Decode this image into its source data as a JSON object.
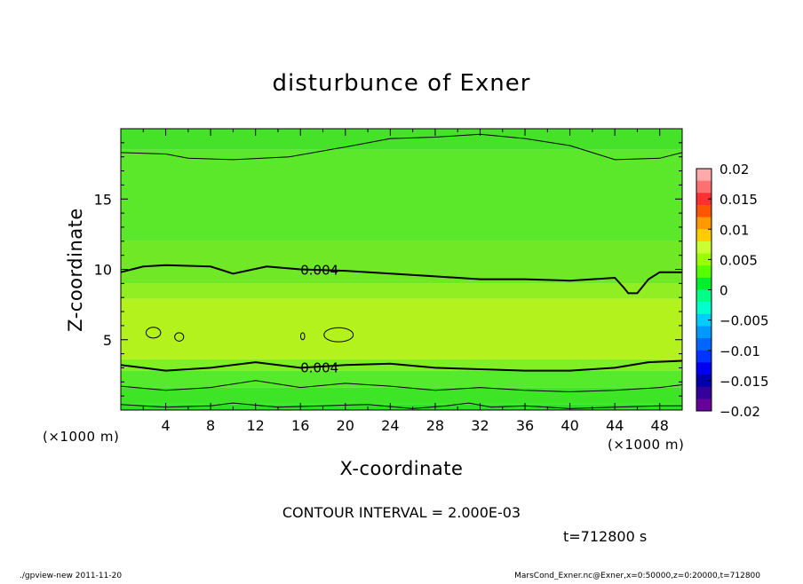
{
  "chart_data": {
    "type": "heatmap",
    "title": "disturbunce of Exner",
    "xlabel": "X-coordinate",
    "ylabel": "Z-coordinate",
    "x_unit_note": "(×1000 m)",
    "z_unit_note": "(×1000 m)",
    "xlim": [
      0,
      50
    ],
    "ylim": [
      0,
      20
    ],
    "x_ticks": [
      "4",
      "8",
      "12",
      "16",
      "20",
      "24",
      "28",
      "32",
      "36",
      "40",
      "44",
      "48"
    ],
    "y_ticks": [
      "5",
      "10",
      "15"
    ],
    "colorbar": {
      "ticks": [
        "0.02",
        "0.015",
        "0.01",
        "0.005",
        "0",
        "−0.005",
        "−0.01",
        "−0.015",
        "−0.02"
      ],
      "range": [
        -0.02,
        0.02
      ],
      "colors": [
        "#ffaaaa",
        "#ff7070",
        "#ff3030",
        "#ff5500",
        "#ff9900",
        "#ffcc00",
        "#ccff33",
        "#99ff00",
        "#55ff00",
        "#00ee30",
        "#00ff88",
        "#00ffcc",
        "#00ccff",
        "#0099ff",
        "#0066ff",
        "#0033ff",
        "#0000ee",
        "#0000aa",
        "#330099",
        "#660099"
      ]
    },
    "bands": [
      {
        "z_bottom": 0.0,
        "z_top": 0.4,
        "color": "#2ce023"
      },
      {
        "z_bottom": 0.4,
        "z_top": 1.6,
        "color": "#3de526"
      },
      {
        "z_bottom": 1.6,
        "z_top": 2.8,
        "color": "#56ea2c"
      },
      {
        "z_bottom": 2.8,
        "z_top": 3.6,
        "color": "#80f023"
      },
      {
        "z_bottom": 3.6,
        "z_top": 7.9,
        "color": "#b4f21e"
      },
      {
        "z_bottom": 7.9,
        "z_top": 9.0,
        "color": "#90ee22"
      },
      {
        "z_bottom": 9.0,
        "z_top": 12.0,
        "color": "#70e826"
      },
      {
        "z_bottom": 12.0,
        "z_top": 18.5,
        "color": "#5ce82a"
      },
      {
        "z_bottom": 18.5,
        "z_top": 20.0,
        "color": "#46e22a"
      }
    ],
    "contours": [
      {
        "level": 0.004,
        "label": "0.004",
        "x": [
          0,
          2,
          4,
          8,
          10,
          13,
          16,
          20,
          24,
          28,
          32,
          36,
          40,
          44,
          44.8,
          45.2,
          46,
          47,
          48,
          50
        ],
        "z": [
          9.8,
          10.2,
          10.3,
          10.2,
          9.7,
          10.2,
          10.0,
          9.9,
          9.7,
          9.5,
          9.3,
          9.3,
          9.2,
          9.4,
          8.7,
          8.3,
          8.3,
          9.3,
          9.8,
          9.8
        ]
      },
      {
        "level": 0.004,
        "label": "0.004",
        "x": [
          0,
          2,
          4,
          8,
          12,
          16,
          20,
          24,
          28,
          32,
          36,
          40,
          44,
          47,
          50
        ],
        "z": [
          3.2,
          3.0,
          2.8,
          3.0,
          3.4,
          3.0,
          3.2,
          3.3,
          3.0,
          2.9,
          2.8,
          2.8,
          3.0,
          3.4,
          3.5
        ]
      },
      {
        "level": 0.002,
        "label": "",
        "x": [
          0,
          4,
          6,
          10,
          15,
          20,
          24,
          28,
          32,
          36,
          40,
          44,
          48,
          50
        ],
        "z": [
          18.3,
          18.2,
          17.9,
          17.8,
          18.0,
          18.7,
          19.3,
          19.4,
          19.6,
          19.3,
          18.8,
          17.8,
          17.9,
          18.3
        ]
      },
      {
        "level": 0.002,
        "label": "",
        "x": [
          0,
          4,
          8,
          12,
          16,
          20,
          24,
          28,
          32,
          36,
          40,
          44,
          48,
          50
        ],
        "z": [
          1.7,
          1.4,
          1.6,
          2.1,
          1.6,
          1.9,
          1.7,
          1.4,
          1.6,
          1.4,
          1.3,
          1.4,
          1.6,
          1.8
        ]
      },
      {
        "level": 0.0,
        "label": "",
        "x": [
          0,
          4,
          8,
          10,
          14,
          18,
          22,
          26,
          29,
          31,
          33,
          36,
          40,
          44,
          48,
          50
        ],
        "z": [
          0.4,
          0.2,
          0.3,
          0.5,
          0.2,
          0.3,
          0.4,
          0.1,
          0.3,
          0.5,
          0.2,
          0.3,
          0.1,
          0.2,
          0.3,
          0.3
        ]
      }
    ],
    "closed_contours": [
      {
        "cx": 2.9,
        "cz": 5.5,
        "rx": 0.65,
        "rz": 0.38
      },
      {
        "cx": 5.2,
        "cz": 5.2,
        "rx": 0.4,
        "rz": 0.3
      },
      {
        "cx": 16.2,
        "cz": 5.25,
        "rx": 0.18,
        "rz": 0.25
      },
      {
        "cx": 19.4,
        "cz": 5.35,
        "rx": 1.3,
        "rz": 0.5
      }
    ],
    "contour_interval_text": "CONTOUR INTERVAL = 2.000E-03",
    "time_text": "t=712800 s"
  },
  "footer": {
    "left": "./gpview-new  2011-11-20",
    "right": "MarsCond_Exner.nc@Exner,x=0:50000,z=0:20000,t=712800"
  }
}
